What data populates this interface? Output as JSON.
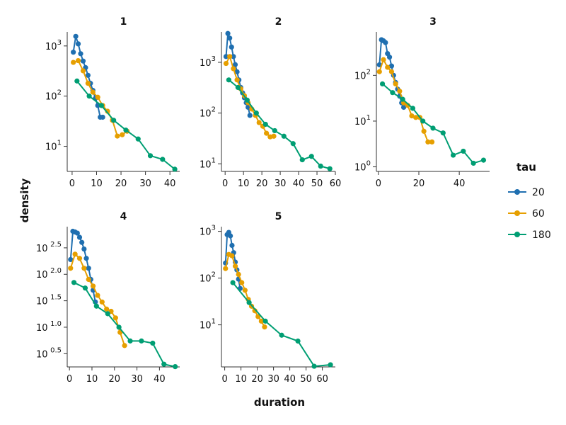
{
  "chart_data": {
    "type": "line",
    "xlabel": "duration",
    "ylabel": "density",
    "yscale": "log10",
    "legend": {
      "title": "tau",
      "position": "right",
      "entries": [
        {
          "name": "20",
          "color": "#1f6fb0"
        },
        {
          "name": "60",
          "color": "#e69f00"
        },
        {
          "name": "180",
          "color": "#009e73"
        }
      ]
    },
    "panels": [
      {
        "title": "1",
        "xticks": [
          0,
          10,
          20,
          30,
          40
        ],
        "xlim": [
          -2,
          44
        ],
        "ylim_log10": [
          0.5,
          3.28
        ],
        "yticks": [
          {
            "label": "10",
            "exp": "1",
            "log": 1
          },
          {
            "label": "10",
            "exp": "2",
            "log": 2
          },
          {
            "label": "10",
            "exp": "3",
            "log": 3
          }
        ],
        "series": [
          {
            "name": "20",
            "x": [
              0.5,
              1.5,
              2.5,
              3.5,
              4.5,
              5.5,
              6.5,
              7.5,
              8.5,
              9.5,
              10.5,
              11.5,
              12.5
            ],
            "y": [
              750,
              1550,
              1100,
              700,
              500,
              370,
              260,
              180,
              130,
              90,
              65,
              38,
              38
            ]
          },
          {
            "name": "60",
            "x": [
              0.5,
              2.5,
              4.5,
              6.5,
              8.5,
              10.5,
              12.5,
              14.5,
              16.5,
              18.5,
              20.5,
              22.5
            ],
            "y": [
              470,
              510,
              320,
              180,
              120,
              95,
              65,
              50,
              33,
              16,
              17,
              20
            ]
          },
          {
            "name": "180",
            "x": [
              2,
              7,
              12,
              17,
              22,
              27,
              32,
              37,
              42
            ],
            "y": [
              200,
              100,
              65,
              33,
              21,
              14,
              6.5,
              5.5,
              3.5
            ]
          }
        ]
      },
      {
        "title": "2",
        "xticks": [
          0,
          10,
          20,
          30,
          40,
          50,
          60
        ],
        "xlim": [
          -2,
          60
        ],
        "ylim_log10": [
          0.85,
          3.6
        ],
        "yticks": [
          {
            "label": "10",
            "exp": "1",
            "log": 1
          },
          {
            "label": "10",
            "exp": "2",
            "log": 2
          },
          {
            "label": "10",
            "exp": "3",
            "log": 3
          }
        ],
        "series": [
          {
            "name": "20",
            "x": [
              0.5,
              1.5,
              2.5,
              3.5,
              4.5,
              5.5,
              6.5,
              7.5,
              8.5,
              9.5,
              10.5,
              11.5,
              12.5,
              13.5
            ],
            "y": [
              1300,
              3700,
              3000,
              2000,
              1300,
              900,
              650,
              450,
              320,
              250,
              200,
              160,
              130,
              90
            ]
          },
          {
            "name": "60",
            "x": [
              0.5,
              2.5,
              4.5,
              6.5,
              8.5,
              10.5,
              12.5,
              14.5,
              16.5,
              18.5,
              20.5,
              22.5,
              24.5,
              26.5
            ],
            "y": [
              950,
              1300,
              750,
              450,
              300,
              220,
              160,
              120,
              90,
              65,
              55,
              40,
              34,
              35
            ]
          },
          {
            "name": "180",
            "x": [
              2,
              7,
              12,
              17,
              22,
              27,
              32,
              37,
              42,
              47,
              52,
              57
            ],
            "y": [
              450,
              320,
              180,
              100,
              60,
              45,
              35,
              25,
              12,
              14,
              9,
              8
            ]
          }
        ]
      },
      {
        "title": "3",
        "xticks": [
          0,
          20,
          40
        ],
        "xlim": [
          -1,
          55
        ],
        "ylim_log10": [
          -0.1,
          2.95
        ],
        "yticks": [
          {
            "label": "10",
            "exp": "0",
            "log": 0
          },
          {
            "label": "10",
            "exp": "1",
            "log": 1
          },
          {
            "label": "10",
            "exp": "2",
            "log": 2
          }
        ],
        "series": [
          {
            "name": "20",
            "x": [
              0.5,
              1.5,
              2.5,
              3.5,
              4.5,
              5.5,
              6.5,
              7.5,
              8.5,
              9.5,
              10.5,
              11.5,
              12.5
            ],
            "y": [
              170,
              600,
              570,
              520,
              300,
              250,
              160,
              100,
              70,
              50,
              35,
              25,
              20
            ]
          },
          {
            "name": "60",
            "x": [
              0.5,
              2.5,
              4.5,
              6.5,
              8.5,
              10.5,
              12.5,
              14.5,
              16.5,
              18.5,
              20.5,
              22.5,
              24.5,
              26.5
            ],
            "y": [
              120,
              220,
              150,
              120,
              65,
              45,
              25,
              22,
              13,
              12,
              12,
              6,
              3.5,
              3.5
            ]
          },
          {
            "name": "180",
            "x": [
              2,
              7,
              12,
              17,
              22,
              27,
              32,
              37,
              42,
              47,
              52
            ],
            "y": [
              65,
              42,
              30,
              19,
              10,
              7,
              5.5,
              1.8,
              2.2,
              1.2,
              1.4
            ]
          }
        ]
      },
      {
        "title": "4",
        "xticks": [
          0,
          10,
          20,
          30,
          40
        ],
        "xlim": [
          -1,
          49
        ],
        "ylim_log10": [
          0.25,
          2.9
        ],
        "yticks": [
          {
            "label": "10",
            "exp": "0.5",
            "log": 0.5
          },
          {
            "label": "10",
            "exp": "1.0",
            "log": 1.0
          },
          {
            "label": "10",
            "exp": "1.5",
            "log": 1.5
          },
          {
            "label": "10",
            "exp": "2.0",
            "log": 2.0
          },
          {
            "label": "10",
            "exp": "2.5",
            "log": 2.5
          }
        ],
        "series": [
          {
            "name": "20",
            "x": [
              0.5,
              1.5,
              2.5,
              3.5,
              4.5,
              5.5,
              6.5,
              7.5,
              8.5,
              9.5,
              10.5,
              11.5
            ],
            "y": [
              190,
              650,
              630,
              600,
              500,
              400,
              300,
              200,
              130,
              80,
              50,
              30
            ]
          },
          {
            "name": "60",
            "x": [
              0.5,
              2.5,
              4.5,
              6.5,
              8.5,
              10.5,
              12.5,
              14.5,
              16.5,
              18.5,
              20.5,
              22.5,
              24.5
            ],
            "y": [
              130,
              240,
              200,
              130,
              80,
              60,
              40,
              30,
              22,
              20,
              15,
              8,
              4.5
            ]
          },
          {
            "name": "180",
            "x": [
              2,
              7,
              12,
              17,
              22,
              27,
              32,
              37,
              42,
              47
            ],
            "y": [
              70,
              55,
              25,
              18,
              10,
              5.5,
              5.5,
              5,
              2,
              1.8
            ]
          }
        ]
      },
      {
        "title": "5",
        "xticks": [
          0,
          10,
          20,
          30,
          40,
          50,
          60
        ],
        "xlim": [
          -2,
          68
        ],
        "ylim_log10": [
          0.1,
          3.1
        ],
        "yticks": [
          {
            "label": "10",
            "exp": "1",
            "log": 1
          },
          {
            "label": "10",
            "exp": "2",
            "log": 2
          },
          {
            "label": "10",
            "exp": "3",
            "log": 3
          }
        ],
        "series": [
          {
            "name": "20",
            "x": [
              0.5,
              1.5,
              2.5,
              3.5,
              4.5,
              5.5,
              6.5,
              7.5,
              8.5,
              9.5
            ],
            "y": [
              210,
              850,
              950,
              800,
              500,
              350,
              220,
              150,
              95,
              60
            ]
          },
          {
            "name": "60",
            "x": [
              0.5,
              2.5,
              4.5,
              6.5,
              8.5,
              10.5,
              12.5,
              14.5,
              16.5,
              18.5,
              20.5,
              22.5,
              24.5
            ],
            "y": [
              160,
              320,
              300,
              180,
              120,
              80,
              55,
              35,
              25,
              20,
              15,
              12,
              9
            ]
          },
          {
            "name": "180",
            "x": [
              5,
              15,
              25,
              35,
              45,
              55,
              65
            ],
            "y": [
              80,
              30,
              12,
              6,
              4.5,
              1.3,
              1.4
            ]
          }
        ]
      }
    ]
  }
}
